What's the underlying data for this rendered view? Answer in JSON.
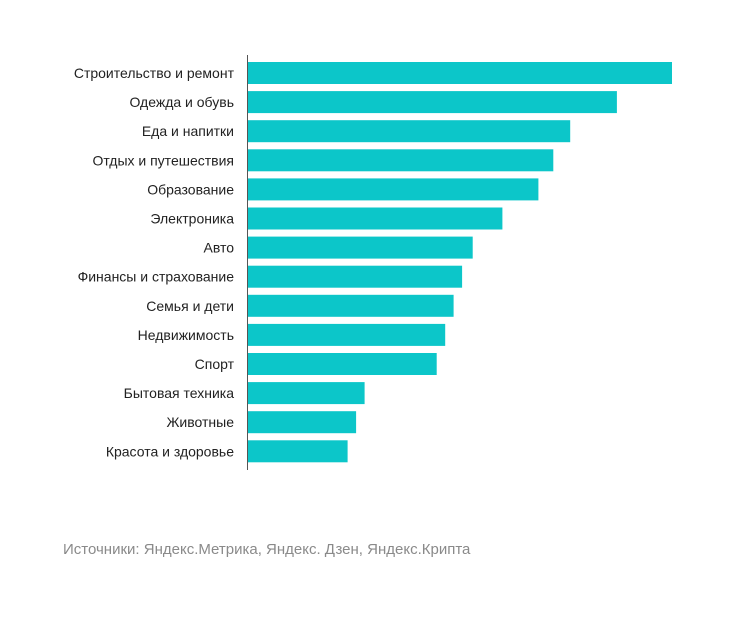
{
  "chart_data": {
    "type": "bar",
    "orientation": "horizontal",
    "categories": [
      "Строительство и ремонт",
      "Одежда и обувь",
      "Еда и напитки",
      "Отдых и путешествия",
      "Образование",
      "Электроника",
      "Авто",
      "Финансы и страхование",
      "Семья и дети",
      "Недвижимость",
      "Спорт",
      "Бытовая техника",
      "Животные",
      "Красота и здоровье"
    ],
    "values": [
      100,
      87,
      76,
      72,
      68.5,
      60,
      53,
      50.5,
      48.5,
      46.5,
      44.5,
      27.5,
      25.5,
      23.5
    ],
    "xlim": [
      0,
      100
    ],
    "grid": false,
    "legend": "none",
    "bar_color": "#0cc6c9",
    "axis_color": "#555555"
  },
  "source_text": "Источники: Яндекс.Метрика, Яндекс. Дзен, Яндекс.Крипта"
}
